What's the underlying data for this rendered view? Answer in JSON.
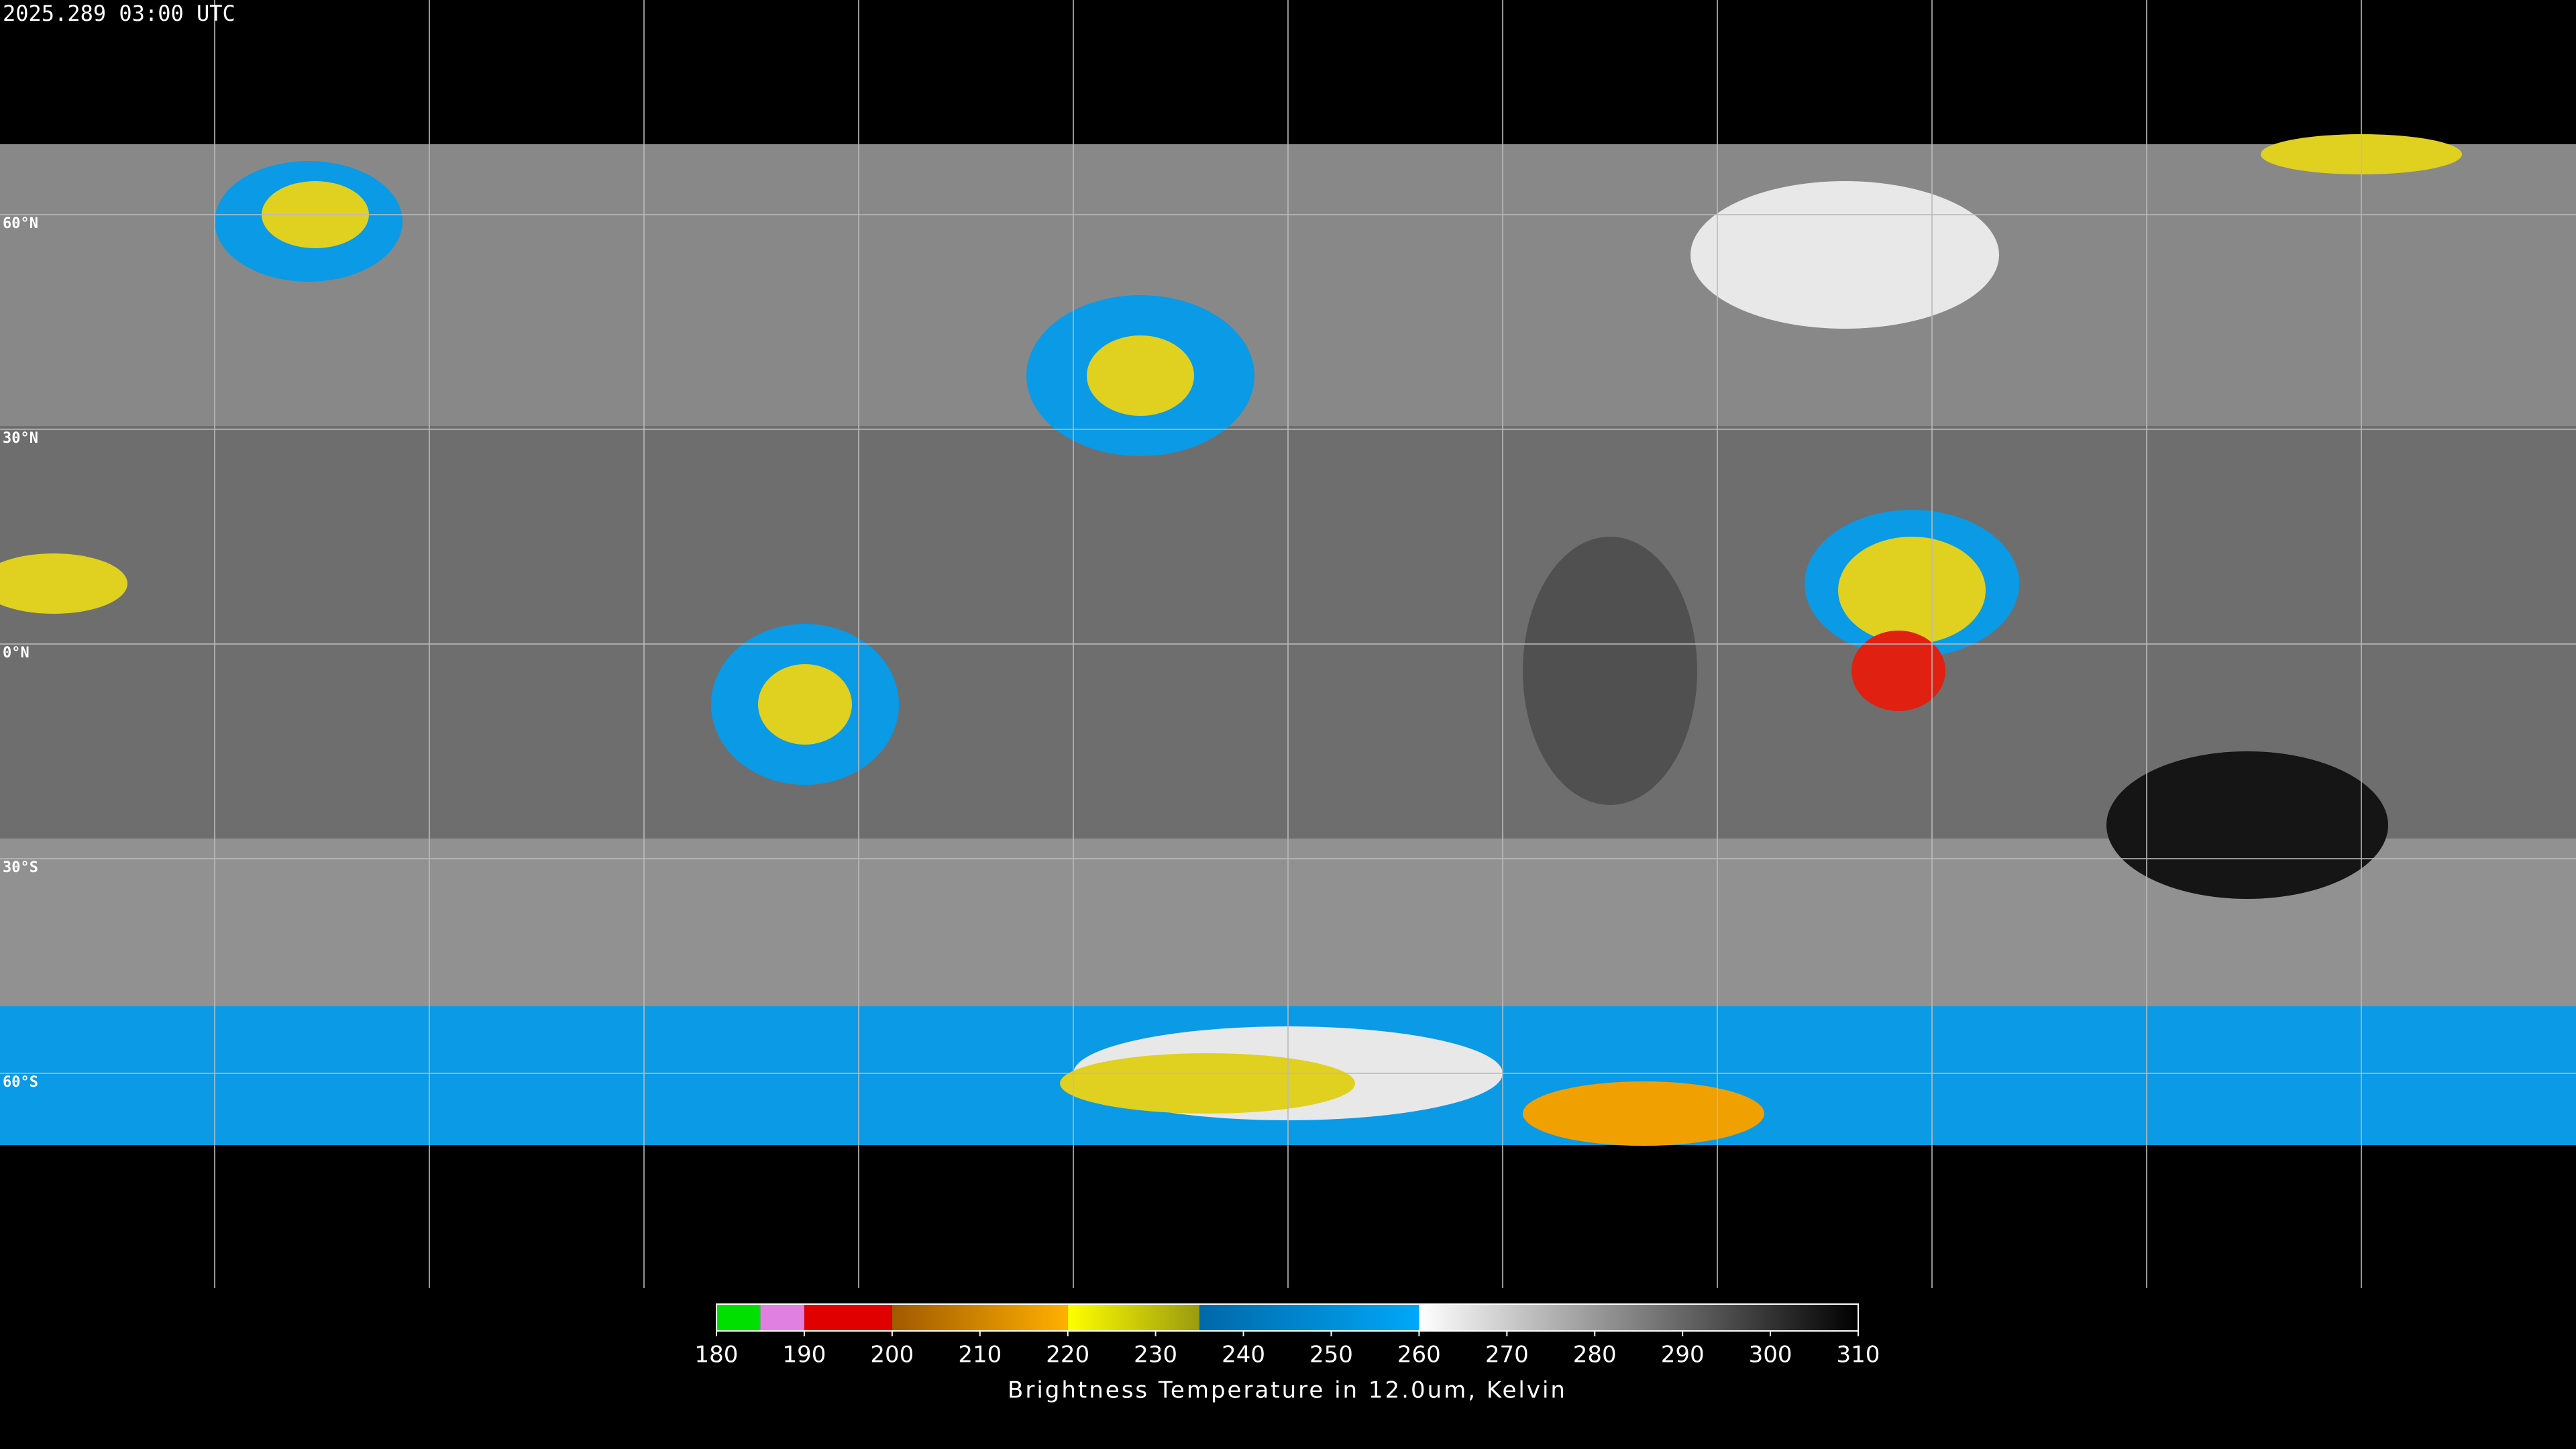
{
  "header": {
    "timestamp": "2025.289 03:00 UTC"
  },
  "map": {
    "latitudes": [
      {
        "value": 60,
        "label": "60°N"
      },
      {
        "value": 30,
        "label": "30°N"
      },
      {
        "value": 0,
        "label": "0°N"
      },
      {
        "value": -30,
        "label": "30°S"
      },
      {
        "value": -60,
        "label": "60°S"
      }
    ]
  },
  "colorbar": {
    "title": "Brightness Temperature in 12.0um, Kelvin",
    "range": [
      180,
      310
    ],
    "ticks": [
      180,
      190,
      200,
      210,
      220,
      230,
      240,
      250,
      260,
      270,
      280,
      290,
      300,
      310
    ],
    "segments": [
      {
        "from": 180,
        "to": 185,
        "colors": [
          "#00e000",
          "#00e000"
        ]
      },
      {
        "from": 185,
        "to": 190,
        "colors": [
          "#e080e0",
          "#e080e0"
        ]
      },
      {
        "from": 190,
        "to": 200,
        "colors": [
          "#e00000",
          "#e00000"
        ]
      },
      {
        "from": 200,
        "to": 220,
        "colors": [
          "#a05a00",
          "#ffb000"
        ]
      },
      {
        "from": 220,
        "to": 235,
        "colors": [
          "#ffff00",
          "#9a9a10"
        ]
      },
      {
        "from": 235,
        "to": 260,
        "colors": [
          "#0068a8",
          "#00a8f8"
        ]
      },
      {
        "from": 260,
        "to": 310,
        "colors": [
          "#ffffff",
          "#000000"
        ]
      }
    ]
  }
}
